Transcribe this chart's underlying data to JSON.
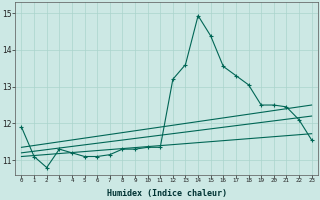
{
  "xlabel": "Humidex (Indice chaleur)",
  "bg_color": "#cce8e4",
  "line_color": "#006655",
  "grid_color": "#aad4cc",
  "x_main": [
    0,
    1,
    2,
    3,
    4,
    5,
    6,
    7,
    8,
    9,
    10,
    11,
    12,
    13,
    14,
    15,
    16,
    17,
    18,
    19,
    20,
    21,
    22,
    23
  ],
  "y_main": [
    11.9,
    11.1,
    10.8,
    11.3,
    11.2,
    11.1,
    11.1,
    11.15,
    11.3,
    11.3,
    11.35,
    11.35,
    13.2,
    13.6,
    14.93,
    14.38,
    13.55,
    13.3,
    13.05,
    12.5,
    12.5,
    12.45,
    12.1,
    11.55
  ],
  "line1_x": [
    0,
    23
  ],
  "line1_y": [
    11.1,
    11.72
  ],
  "line2_x": [
    0,
    23
  ],
  "line2_y": [
    11.2,
    12.2
  ],
  "line3_x": [
    0,
    23
  ],
  "line3_y": [
    11.35,
    12.5
  ],
  "ylim": [
    10.6,
    15.3
  ],
  "xlim": [
    -0.5,
    23.5
  ],
  "yticks": [
    11,
    12,
    13,
    14,
    15
  ],
  "xticks": [
    0,
    1,
    2,
    3,
    4,
    5,
    6,
    7,
    8,
    9,
    10,
    11,
    12,
    13,
    14,
    15,
    16,
    17,
    18,
    19,
    20,
    21,
    22,
    23
  ]
}
